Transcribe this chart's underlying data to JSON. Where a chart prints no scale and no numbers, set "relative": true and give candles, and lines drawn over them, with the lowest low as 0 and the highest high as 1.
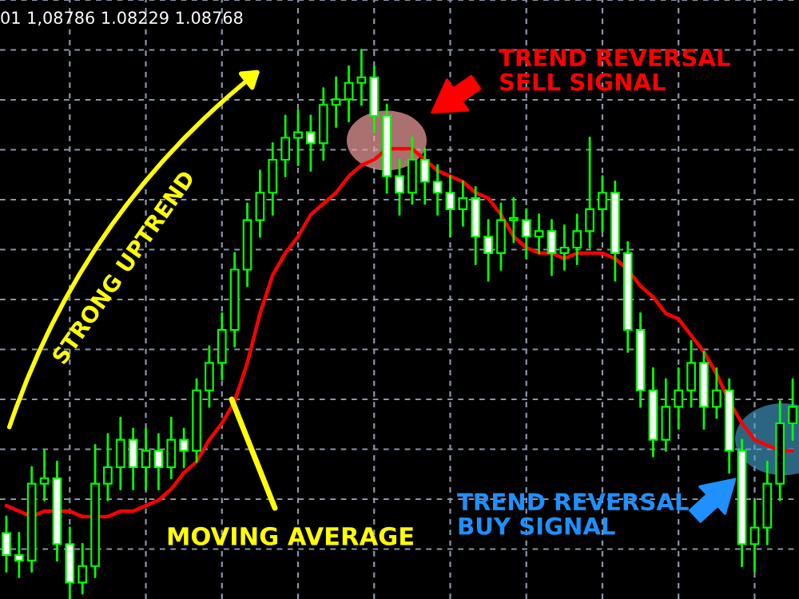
{
  "chart_data": {
    "type": "candlestick",
    "relative": true,
    "grid": true,
    "categories": [
      null,
      null,
      null,
      null,
      null,
      null,
      null,
      null,
      null,
      null,
      null,
      null,
      null,
      null,
      null,
      null,
      null,
      null,
      null,
      null,
      null,
      null,
      null,
      null,
      null,
      null,
      null,
      null,
      null,
      null,
      null,
      null,
      null,
      null,
      null,
      null,
      null,
      null,
      null,
      null,
      null,
      null,
      null,
      null,
      null,
      null,
      null,
      null,
      null,
      null,
      null,
      null,
      null,
      null,
      null,
      null,
      null,
      null,
      null,
      null,
      null,
      null,
      null
    ],
    "ohlc": [
      [
        0.12,
        0.15,
        0.05,
        0.08
      ],
      [
        0.08,
        0.12,
        0.04,
        0.07
      ],
      [
        0.07,
        0.24,
        0.05,
        0.21
      ],
      [
        0.21,
        0.27,
        0.18,
        0.22
      ],
      [
        0.22,
        0.25,
        0.07,
        0.1
      ],
      [
        0.1,
        0.13,
        0.0,
        0.03
      ],
      [
        0.03,
        0.1,
        0.01,
        0.06
      ],
      [
        0.06,
        0.28,
        0.04,
        0.21
      ],
      [
        0.21,
        0.3,
        0.18,
        0.24
      ],
      [
        0.24,
        0.33,
        0.2,
        0.29
      ],
      [
        0.29,
        0.31,
        0.2,
        0.24
      ],
      [
        0.24,
        0.31,
        0.2,
        0.27
      ],
      [
        0.27,
        0.3,
        0.2,
        0.24
      ],
      [
        0.24,
        0.33,
        0.22,
        0.29
      ],
      [
        0.29,
        0.31,
        0.24,
        0.27
      ],
      [
        0.27,
        0.4,
        0.25,
        0.38
      ],
      [
        0.38,
        0.46,
        0.35,
        0.43
      ],
      [
        0.43,
        0.52,
        0.4,
        0.49
      ],
      [
        0.49,
        0.63,
        0.46,
        0.6
      ],
      [
        0.6,
        0.72,
        0.57,
        0.69
      ],
      [
        0.69,
        0.78,
        0.66,
        0.74
      ],
      [
        0.74,
        0.83,
        0.7,
        0.8
      ],
      [
        0.8,
        0.88,
        0.77,
        0.84
      ],
      [
        0.84,
        0.89,
        0.79,
        0.85
      ],
      [
        0.85,
        0.88,
        0.78,
        0.83
      ],
      [
        0.83,
        0.93,
        0.8,
        0.9
      ],
      [
        0.9,
        0.95,
        0.86,
        0.91
      ],
      [
        0.91,
        0.97,
        0.87,
        0.94
      ],
      [
        0.94,
        1.0,
        0.9,
        0.95
      ],
      [
        0.95,
        0.97,
        0.85,
        0.88
      ],
      [
        0.88,
        0.9,
        0.74,
        0.77
      ],
      [
        0.77,
        0.8,
        0.7,
        0.74
      ],
      [
        0.74,
        0.84,
        0.72,
        0.8
      ],
      [
        0.8,
        0.82,
        0.72,
        0.76
      ],
      [
        0.76,
        0.79,
        0.7,
        0.74
      ],
      [
        0.74,
        0.77,
        0.66,
        0.71
      ],
      [
        0.71,
        0.76,
        0.68,
        0.73
      ],
      [
        0.73,
        0.75,
        0.61,
        0.66
      ],
      [
        0.66,
        0.69,
        0.58,
        0.63
      ],
      [
        0.63,
        0.72,
        0.6,
        0.69
      ],
      [
        0.69,
        0.73,
        0.65,
        0.69
      ],
      [
        0.69,
        0.71,
        0.62,
        0.66
      ],
      [
        0.66,
        0.7,
        0.63,
        0.67
      ],
      [
        0.67,
        0.69,
        0.59,
        0.63
      ],
      [
        0.63,
        0.68,
        0.6,
        0.64
      ],
      [
        0.64,
        0.7,
        0.61,
        0.67
      ],
      [
        0.67,
        0.84,
        0.64,
        0.71
      ],
      [
        0.71,
        0.77,
        0.67,
        0.74
      ],
      [
        0.74,
        0.76,
        0.58,
        0.63
      ],
      [
        0.63,
        0.65,
        0.45,
        0.49
      ],
      [
        0.49,
        0.52,
        0.35,
        0.38
      ],
      [
        0.38,
        0.42,
        0.26,
        0.29
      ],
      [
        0.29,
        0.4,
        0.27,
        0.35
      ],
      [
        0.35,
        0.42,
        0.31,
        0.38
      ],
      [
        0.38,
        0.47,
        0.35,
        0.43
      ],
      [
        0.43,
        0.45,
        0.31,
        0.35
      ],
      [
        0.35,
        0.42,
        0.33,
        0.38
      ],
      [
        0.38,
        0.4,
        0.23,
        0.27
      ],
      [
        0.27,
        0.29,
        0.06,
        0.1
      ],
      [
        0.1,
        0.18,
        0.05,
        0.13
      ],
      [
        0.13,
        0.25,
        0.1,
        0.21
      ],
      [
        0.21,
        0.36,
        0.18,
        0.32
      ],
      [
        0.32,
        0.4,
        0.29,
        0.35
      ]
    ],
    "series": [
      {
        "type": "line",
        "color": "#ff0000",
        "values": [
          0.17,
          0.16,
          0.15,
          0.16,
          0.16,
          0.16,
          0.15,
          0.15,
          0.15,
          0.16,
          0.16,
          0.17,
          0.18,
          0.2,
          0.23,
          0.25,
          0.29,
          0.32,
          0.36,
          0.43,
          0.52,
          0.59,
          0.63,
          0.66,
          0.7,
          0.72,
          0.74,
          0.77,
          0.79,
          0.8,
          0.82,
          0.82,
          0.82,
          0.8,
          0.78,
          0.77,
          0.76,
          0.74,
          0.73,
          0.7,
          0.66,
          0.64,
          0.63,
          0.63,
          0.62,
          0.63,
          0.63,
          0.63,
          0.62,
          0.6,
          0.57,
          0.55,
          0.52,
          0.51,
          0.48,
          0.45,
          0.41,
          0.36,
          0.32,
          0.29,
          0.28,
          0.27,
          0.27
        ]
      }
    ],
    "annotations": [
      "01 1,08786 1.08229 1.08768",
      "STRONG UPTREND",
      "TREND REVERSAL\nSELL SIGNAL",
      "MOVING AVERAGE",
      "TREND REVERSAL\nBUY SIGNAL"
    ]
  }
}
